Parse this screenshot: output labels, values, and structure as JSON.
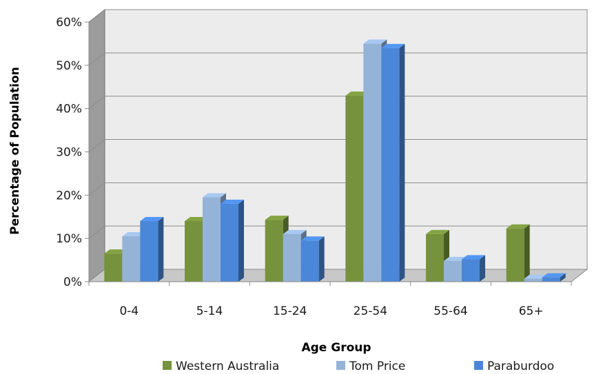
{
  "chart_data": {
    "type": "bar",
    "title": "",
    "xlabel": "Age Group",
    "ylabel": "Percentage of Population",
    "categories": [
      "0-4",
      "5-14",
      "15-24",
      "25-54",
      "55-64",
      "65+"
    ],
    "ylim": [
      0,
      60
    ],
    "yticks": [
      "0%",
      "10%",
      "20%",
      "30%",
      "40%",
      "50%",
      "60%"
    ],
    "grid": true,
    "three_d": true,
    "legend_position": "bottom",
    "series": [
      {
        "name": "Western Australia",
        "values": [
          6.5,
          14,
          14.3,
          43,
          11,
          12.3
        ],
        "color": "#76923c"
      },
      {
        "name": "Tom Price",
        "values": [
          10.5,
          19.5,
          11,
          55,
          4.8,
          0.7
        ],
        "color": "#95b3d7"
      },
      {
        "name": "Paraburdoo",
        "values": [
          14,
          18,
          9.5,
          54,
          5.2,
          1.0
        ],
        "color": "#4a87d8"
      }
    ]
  }
}
